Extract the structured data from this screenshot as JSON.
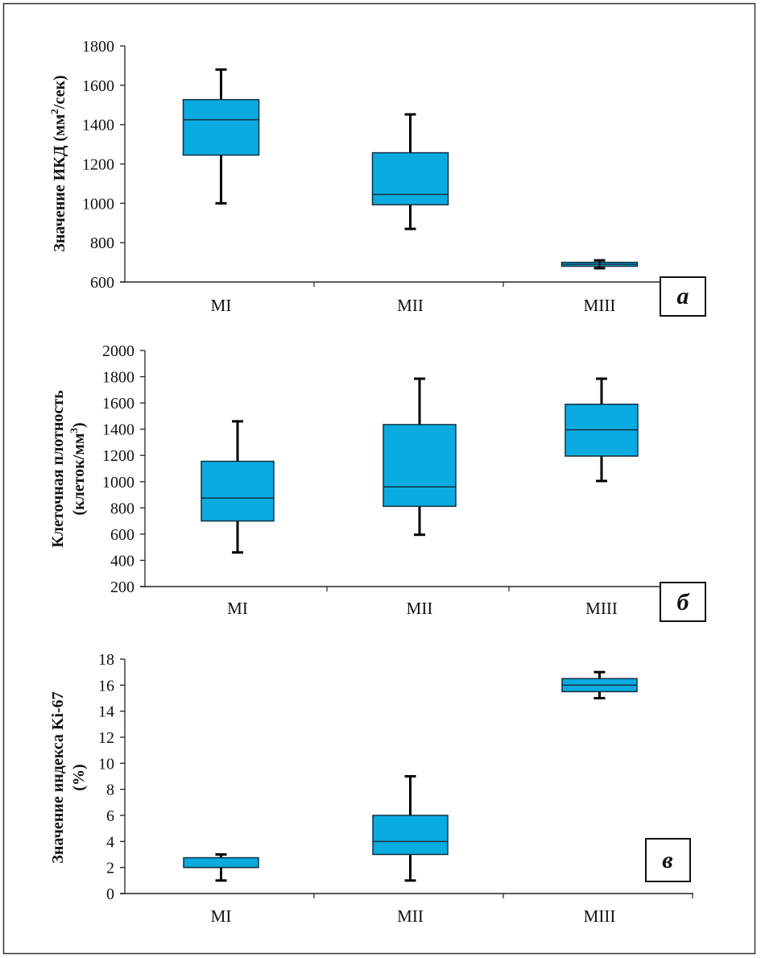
{
  "chart_data": [
    {
      "type": "boxplot",
      "panel_label": "а",
      "title": "",
      "xlabel": "",
      "ylabel": "Значение ИКД (мм²/сек)",
      "ylabel_parts": [
        "Значение ИКД (мм",
        "2",
        "/сек)"
      ],
      "ylim": [
        600,
        1800
      ],
      "yticks": [
        600,
        800,
        1000,
        1200,
        1400,
        1600,
        1800
      ],
      "grid": false,
      "categories": [
        "MI",
        "MII",
        "MIII"
      ],
      "boxes": [
        {
          "category": "MI",
          "whisker_low": 1000,
          "q1": 1245,
          "median": 1425,
          "q3": 1527,
          "whisker_high": 1680
        },
        {
          "category": "MII",
          "whisker_low": 870,
          "q1": 993,
          "median": 1045,
          "q3": 1257,
          "whisker_high": 1452
        },
        {
          "category": "MIII",
          "whisker_low": 670,
          "q1": 680,
          "median": 690,
          "q3": 700,
          "whisker_high": 710
        }
      ]
    },
    {
      "type": "boxplot",
      "panel_label": "б",
      "title": "",
      "xlabel": "",
      "ylabel": "Клеточная плотность (клеток/мм³)",
      "ylabel_lines": [
        "Клеточная плотность",
        "(клеток/мм",
        "3",
        ")"
      ],
      "ylim": [
        200,
        2000
      ],
      "yticks": [
        200,
        400,
        600,
        800,
        1000,
        1200,
        1400,
        1600,
        1800,
        2000
      ],
      "grid": false,
      "categories": [
        "MI",
        "MII",
        "MIII"
      ],
      "boxes": [
        {
          "category": "MI",
          "whisker_low": 460,
          "q1": 700,
          "median": 875,
          "q3": 1155,
          "whisker_high": 1460
        },
        {
          "category": "MII",
          "whisker_low": 595,
          "q1": 812,
          "median": 960,
          "q3": 1435,
          "whisker_high": 1785
        },
        {
          "category": "MIII",
          "whisker_low": 1005,
          "q1": 1195,
          "median": 1395,
          "q3": 1590,
          "whisker_high": 1785
        }
      ]
    },
    {
      "type": "boxplot",
      "panel_label": "в",
      "title": "",
      "xlabel": "",
      "ylabel": "Значение индекса Ki-67 (%)",
      "ylabel_lines": [
        "Значение индекса Ki-67",
        "(%)"
      ],
      "ylim": [
        0,
        18
      ],
      "yticks": [
        0,
        2,
        4,
        6,
        8,
        10,
        12,
        14,
        16,
        18
      ],
      "grid": false,
      "categories": [
        "MI",
        "MII",
        "MIII"
      ],
      "boxes": [
        {
          "category": "MI",
          "whisker_low": 1,
          "q1": 2,
          "median": 2,
          "q3": 2.75,
          "whisker_high": 3
        },
        {
          "category": "MII",
          "whisker_low": 1,
          "q1": 3,
          "median": 4,
          "q3": 6,
          "whisker_high": 9
        },
        {
          "category": "MIII",
          "whisker_low": 15,
          "q1": 15.5,
          "median": 16,
          "q3": 16.5,
          "whisker_high": 17
        }
      ]
    }
  ],
  "colors": {
    "box_fill": "#0aabe0",
    "box_stroke": "#123040",
    "whisker": "#000000",
    "axis": "#222222"
  }
}
